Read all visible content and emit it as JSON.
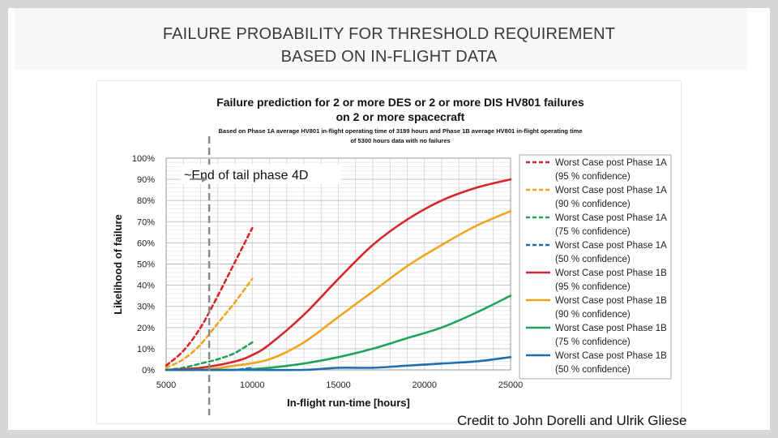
{
  "slide": {
    "title_line1": "FAILURE PROBABILITY FOR THRESHOLD REQUIREMENT",
    "title_line2": "BASED ON IN-FLIGHT DATA",
    "credit": "Credit to John Dorelli and Ulrik Gliese"
  },
  "colors": {
    "red": "#d7262a",
    "orange": "#f0a51e",
    "green": "#1fa35a",
    "blue": "#1f6fb0",
    "gray": "#8a8a8a"
  },
  "chart_data": {
    "type": "line",
    "title": "Failure prediction for 2 or more DES or 2 or more DIS HV801 failures",
    "title_line2": "on 2 or more spacecraft",
    "subtitle": "Based on Phase 1A average HV801 in-flight operating time of 3189 hours and Phase 1B average HV801 in-flight operating time",
    "subtitle_line2": "of 5300 hours data with no failures",
    "xlabel": "In-flight run-time [hours]",
    "ylabel": "Likelihood of failure",
    "xlim": [
      5000,
      25000
    ],
    "ylim": [
      0,
      100
    ],
    "xticks": [
      5000,
      10000,
      15000,
      20000,
      25000
    ],
    "xtick_labels": [
      "5000",
      "10000",
      "15000",
      "20000",
      "25000"
    ],
    "yticks": [
      0,
      10,
      20,
      30,
      40,
      50,
      60,
      70,
      80,
      90,
      100
    ],
    "ytick_labels": [
      "0%",
      "10%",
      "20%",
      "30%",
      "40%",
      "50%",
      "60%",
      "70%",
      "80%",
      "90%",
      "100%"
    ],
    "grid": true,
    "legend_position": "right",
    "vline": {
      "x": 7500,
      "label": "~End of tail phase 4D"
    },
    "series": [
      {
        "name": "Worst Case post Phase 1A",
        "sub": "(95 % confidence)",
        "color": "#d7262a",
        "dash": true,
        "x": [
          5000,
          6000,
          7000,
          8000,
          9000,
          10000
        ],
        "y": [
          2,
          9,
          20,
          35,
          51,
          67
        ]
      },
      {
        "name": "Worst Case post Phase 1A",
        "sub": "(90 % confidence)",
        "color": "#f0a51e",
        "dash": true,
        "x": [
          5000,
          6000,
          7000,
          8000,
          9000,
          10000
        ],
        "y": [
          1,
          5,
          12,
          22,
          32,
          43
        ]
      },
      {
        "name": "Worst Case post Phase 1A",
        "sub": "(75 % confidence)",
        "color": "#1fa35a",
        "dash": true,
        "x": [
          5000,
          6000,
          7000,
          8000,
          9000,
          10000
        ],
        "y": [
          0,
          1,
          3,
          5,
          8,
          13
        ]
      },
      {
        "name": "Worst Case post Phase 1A",
        "sub": "(50 % confidence)",
        "color": "#1f6fb0",
        "dash": true,
        "x": [
          5000,
          6000,
          7000,
          8000,
          9000,
          10000
        ],
        "y": [
          0,
          0,
          0,
          0,
          0,
          1
        ]
      },
      {
        "name": "Worst Case post Phase 1B",
        "sub": "(95 % confidence)",
        "color": "#d7262a",
        "dash": false,
        "x": [
          5000,
          7000,
          9000,
          10000,
          11000,
          13000,
          15000,
          17000,
          19000,
          21000,
          23000,
          25000
        ],
        "y": [
          0,
          1,
          4,
          7,
          12,
          26,
          43,
          59,
          71,
          80,
          86,
          90
        ]
      },
      {
        "name": "Worst Case post Phase 1B",
        "sub": "(90 % confidence)",
        "color": "#f0a51e",
        "dash": false,
        "x": [
          5000,
          7000,
          9000,
          11000,
          13000,
          15000,
          17000,
          19000,
          21000,
          23000,
          25000
        ],
        "y": [
          0,
          0,
          2,
          5,
          13,
          25,
          37,
          49,
          59,
          68,
          75
        ]
      },
      {
        "name": "Worst Case post Phase 1B",
        "sub": "(75 % confidence)",
        "color": "#1fa35a",
        "dash": false,
        "x": [
          5000,
          7000,
          9000,
          11000,
          13000,
          15000,
          17000,
          19000,
          21000,
          23000,
          25000
        ],
        "y": [
          0,
          0,
          0,
          1,
          3,
          6,
          10,
          15,
          20,
          27,
          35
        ]
      },
      {
        "name": "Worst Case post Phase 1B",
        "sub": "(50 % confidence)",
        "color": "#1f6fb0",
        "dash": false,
        "x": [
          5000,
          9000,
          13000,
          15000,
          17000,
          19000,
          21000,
          23000,
          25000
        ],
        "y": [
          0,
          0,
          0,
          1,
          1,
          2,
          3,
          4,
          6
        ]
      }
    ]
  }
}
